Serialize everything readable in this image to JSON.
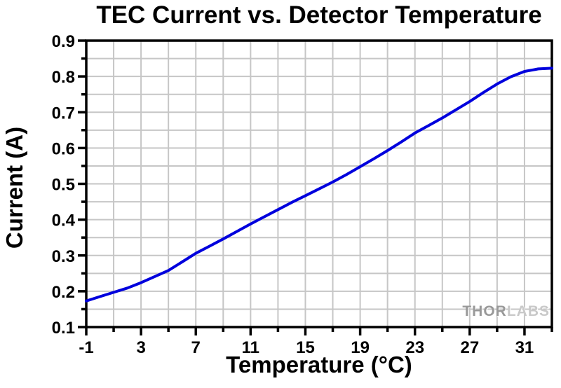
{
  "chart_data": {
    "type": "line",
    "title": "TEC Current vs. Detector Temperature",
    "xlabel": "Temperature (°C)",
    "ylabel": "Current (A)",
    "xlim": [
      -1,
      33
    ],
    "ylim": [
      0.1,
      0.9
    ],
    "x_major_tick_start": -1,
    "x_major_tick_step": 4,
    "x_minor_tick_step": 2,
    "y_major_tick_step": 0.1,
    "y_minor_tick_step": 0.05,
    "x_tick_labels": [
      "-1",
      "3",
      "7",
      "11",
      "15",
      "19",
      "23",
      "27",
      "31"
    ],
    "y_tick_labels": [
      "0.1",
      "0.2",
      "0.3",
      "0.4",
      "0.5",
      "0.6",
      "0.7",
      "0.8",
      "0.9"
    ],
    "grid": "on, at every minor tick",
    "legend": "none",
    "grid_color": "#c6c6c6",
    "axis_color": "#000000",
    "background_color": "#ffffff",
    "series": [
      {
        "name": "TEC current vs detector temperature",
        "color": "#0000dd",
        "x": [
          -1,
          0,
          1,
          2,
          3,
          4,
          5,
          6,
          7,
          8,
          9,
          10,
          11,
          12,
          13,
          14,
          15,
          16,
          17,
          18,
          19,
          20,
          21,
          22,
          23,
          24,
          25,
          26,
          27,
          28,
          29,
          30,
          31,
          32,
          33
        ],
        "y": [
          0.173,
          0.185,
          0.197,
          0.209,
          0.224,
          0.241,
          0.258,
          0.282,
          0.306,
          0.326,
          0.346,
          0.367,
          0.388,
          0.408,
          0.428,
          0.448,
          0.467,
          0.486,
          0.505,
          0.526,
          0.548,
          0.57,
          0.593,
          0.617,
          0.642,
          0.663,
          0.684,
          0.707,
          0.73,
          0.755,
          0.779,
          0.799,
          0.814,
          0.821,
          0.823
        ]
      }
    ]
  },
  "watermark": {
    "part1": "THOR",
    "part2": "LABS",
    "part1_color": "#999999",
    "part2_color": "#c9c9c9"
  }
}
